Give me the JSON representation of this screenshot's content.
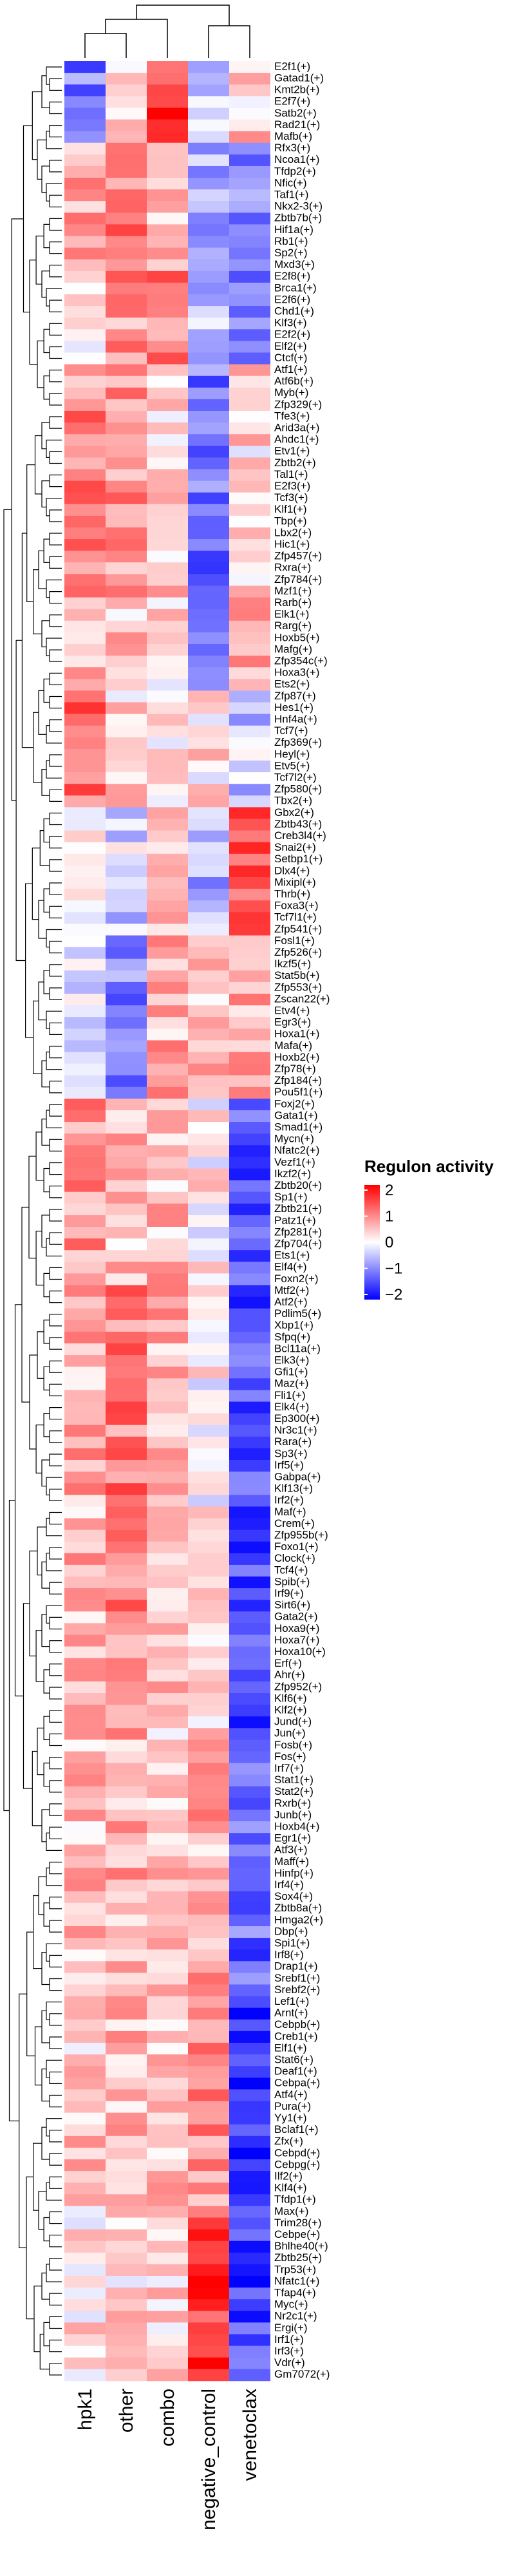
{
  "chart_data": {
    "type": "heatmap",
    "columns": [
      "hpk1",
      "other",
      "combo",
      "negative_control",
      "venetoclax"
    ],
    "rows": [
      "E2f1(+)",
      "Gatad1(+)",
      "Kmt2b(+)",
      "E2f7(+)",
      "Satb2(+)",
      "Rad21(+)",
      "Mafb(+)",
      "Rfx3(+)",
      "Ncoa1(+)",
      "Tfdp2(+)",
      "Nfic(+)",
      "Taf1(+)",
      "Nkx2-3(+)",
      "Zbtb7b(+)",
      "Hif1a(+)",
      "Rb1(+)",
      "Sp2(+)",
      "Mxd3(+)",
      "E2f8(+)",
      "Brca1(+)",
      "E2f6(+)",
      "Chd1(+)",
      "Klf3(+)",
      "E2f2(+)",
      "Elf2(+)",
      "Ctcf(+)",
      "Atf1(+)",
      "Atf6b(+)",
      "Myb(+)",
      "Zfp329(+)",
      "Tfe3(+)",
      "Arid3a(+)",
      "Ahdc1(+)",
      "Etv1(+)",
      "Zbtb2(+)",
      "Tal1(+)",
      "E2f3(+)",
      "Tcf3(+)",
      "Klf1(+)",
      "Tbp(+)",
      "Lbx2(+)",
      "Hic1(+)",
      "Zfp457(+)",
      "Rxra(+)",
      "Zfp784(+)",
      "Mzf1(+)",
      "Rarb(+)",
      "Elk1(+)",
      "Rarg(+)",
      "Hoxb5(+)",
      "Mafg(+)",
      "Zfp354c(+)",
      "Hoxa3(+)",
      "Ets2(+)",
      "Zfp87(+)",
      "Hes1(+)",
      "Hnf4a(+)",
      "Tcf7(+)",
      "Zfp369(+)",
      "Heyl(+)",
      "Etv5(+)",
      "Tcf7l2(+)",
      "Zfp580(+)",
      "Tbx2(+)",
      "Gbx2(+)",
      "Zbtb43(+)",
      "Creb3l4(+)",
      "Snai2(+)",
      "Setbp1(+)",
      "Dlx4(+)",
      "Mixipl(+)",
      "Thrb(+)",
      "Foxa3(+)",
      "Tcf7l1(+)",
      "Zfp541(+)",
      "Fosl1(+)",
      "Zfp526(+)",
      "Ikzf5(+)",
      "Stat5b(+)",
      "Zfp553(+)",
      "Zscan22(+)",
      "Etv4(+)",
      "Egr3(+)",
      "Hoxa1(+)",
      "Mafa(+)",
      "Hoxb2(+)",
      "Zfp78(+)",
      "Zfp184(+)",
      "Pou5f1(+)",
      "Foxj2(+)",
      "Gata1(+)",
      "Smad1(+)",
      "Mycn(+)",
      "Nfatc2(+)",
      "Vezf1(+)",
      "Ikzf2(+)",
      "Zbtb20(+)",
      "Sp1(+)",
      "Zbtb21(+)",
      "Patz1(+)",
      "Zfp281(+)",
      "Zfp704(+)",
      "Ets1(+)",
      "Elf4(+)",
      "Foxn2(+)",
      "Mtf2(+)",
      "Atf2(+)",
      "Pdlim5(+)",
      "Xbp1(+)",
      "Sfpq(+)",
      "Bcl11a(+)",
      "Elk3(+)",
      "Gfi1(+)",
      "Maz(+)",
      "Fli1(+)",
      "Elk4(+)",
      "Ep300(+)",
      "Nr3c1(+)",
      "Rara(+)",
      "Sp3(+)",
      "Irf5(+)",
      "Gabpa(+)",
      "Klf13(+)",
      "Irf2(+)",
      "Maf(+)",
      "Crem(+)",
      "Zfp955b(+)",
      "Foxo1(+)",
      "Clock(+)",
      "Tcf4(+)",
      "Spib(+)",
      "Irf9(+)",
      "Sirt6(+)",
      "Gata2(+)",
      "Hoxa9(+)",
      "Hoxa7(+)",
      "Hoxa10(+)",
      "Erf(+)",
      "Ahr(+)",
      "Zfp952(+)",
      "Klf6(+)",
      "Klf2(+)",
      "Jund(+)",
      "Jun(+)",
      "Fosb(+)",
      "Fos(+)",
      "Irf7(+)",
      "Stat1(+)",
      "Stat2(+)",
      "Rxrb(+)",
      "Junb(+)",
      "Hoxb4(+)",
      "Egr1(+)",
      "Atf3(+)",
      "Maff(+)",
      "Hinfp(+)",
      "Irf4(+)",
      "Sox4(+)",
      "Zbtb8a(+)",
      "Hmga2(+)",
      "Dbp(+)",
      "Spi1(+)",
      "Irf8(+)",
      "Drap1(+)",
      "Srebf1(+)",
      "Srebf2(+)",
      "Lef1(+)",
      "Arnt(+)",
      "Cebpb(+)",
      "Creb1(+)",
      "Elf1(+)",
      "Stat6(+)",
      "Deaf1(+)",
      "Cebpa(+)",
      "Atf4(+)",
      "Pura(+)",
      "Yy1(+)",
      "Bclaf1(+)",
      "Zfx(+)",
      "Cebpd(+)",
      "Cebpg(+)",
      "Ilf2(+)",
      "Klf4(+)",
      "Tfdp1(+)",
      "Max(+)",
      "Trim28(+)",
      "Cebpe(+)",
      "Bhlhe40(+)",
      "Zbtb25(+)",
      "Trp53(+)",
      "Nfatc1(+)",
      "Tfap4(+)",
      "Myc(+)",
      "Nr2c1(+)",
      "Ergi(+)",
      "Irf1(+)",
      "Irf3(+)",
      "Vdr(+)",
      "Gm7072(+)"
    ],
    "legend_title": "Regulon activity",
    "legend_ticks": [
      "2",
      "1",
      "0",
      "−1",
      "−2"
    ],
    "value_range": [
      -2,
      2
    ],
    "colors": {
      "low": "#0000ff",
      "mid": "#ffffff",
      "high": "#ff0000"
    },
    "groups": [
      {
        "until": 7,
        "v": [
          -1.0,
          0.3,
          1.6,
          -0.5,
          0.4
        ]
      },
      {
        "until": 18,
        "v": [
          0.6,
          1.1,
          0.4,
          -0.6,
          -0.8
        ]
      },
      {
        "until": 26,
        "v": [
          0.2,
          0.8,
          1.0,
          -0.4,
          -1.2
        ]
      },
      {
        "until": 46,
        "v": [
          0.9,
          0.8,
          0.4,
          -1.1,
          0.3
        ]
      },
      {
        "until": 54,
        "v": [
          0.6,
          0.4,
          0.2,
          -1.0,
          0.8
        ]
      },
      {
        "until": 64,
        "v": [
          1.2,
          0.3,
          0.1,
          0.2,
          -0.4
        ]
      },
      {
        "until": 75,
        "v": [
          0.3,
          -0.3,
          0.4,
          -0.6,
          1.3
        ]
      },
      {
        "until": 89,
        "v": [
          -0.1,
          -1.0,
          0.6,
          0.5,
          0.7
        ]
      },
      {
        "until": 105,
        "v": [
          0.8,
          0.5,
          0.5,
          0.1,
          -1.3
        ]
      },
      {
        "until": 143,
        "v": [
          0.6,
          1.0,
          0.6,
          0.1,
          -1.4
        ]
      },
      {
        "until": 165,
        "v": [
          0.5,
          0.6,
          0.4,
          0.6,
          -1.2
        ]
      },
      {
        "until": 185,
        "v": [
          0.4,
          0.5,
          0.4,
          0.9,
          -1.7
        ]
      },
      {
        "until": 198,
        "v": [
          0.2,
          0.3,
          0.4,
          1.6,
          -1.5
        ]
      }
    ]
  }
}
